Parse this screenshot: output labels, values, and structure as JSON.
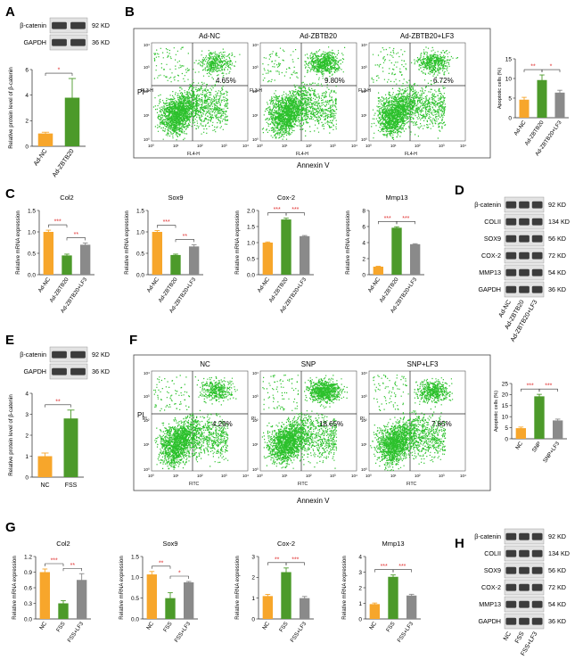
{
  "colors": {
    "orange": "#f7a62b",
    "green": "#4c9a2a",
    "gray": "#8a8a8a",
    "dot": "#2cc12c",
    "sig": "#e03030",
    "band": "#1f1f1f",
    "bg": "#ffffff"
  },
  "panels": {
    "A": "A",
    "B": "B",
    "C": "C",
    "D": "D",
    "E": "E",
    "F": "F",
    "G": "G",
    "H": "H"
  },
  "western_blots": {
    "A": {
      "rows": [
        {
          "label": "β-catenin",
          "size": "92 KD"
        },
        {
          "label": "GAPDH",
          "size": "36 KD"
        }
      ]
    },
    "E": {
      "rows": [
        {
          "label": "β-catenin",
          "size": "92 KD"
        },
        {
          "label": "GAPDH",
          "size": "36 KD"
        }
      ]
    },
    "D": {
      "rows": [
        {
          "label": "β-catenin",
          "size": "92 KD"
        },
        {
          "label": "COLII",
          "size": "134 KD"
        },
        {
          "label": "SOX9",
          "size": "56 KD"
        },
        {
          "label": "COX-2",
          "size": "72 KD"
        },
        {
          "label": "MMP13",
          "size": "54 KD"
        },
        {
          "label": "GAPDH",
          "size": "36 KD"
        }
      ],
      "lanes": [
        "Ad-NC",
        "Ad-ZBTB20",
        "Ad-ZBTB20+LF3"
      ]
    },
    "H": {
      "rows": [
        {
          "label": "β-catenin",
          "size": "92 KD"
        },
        {
          "label": "COLII",
          "size": "134 KD"
        },
        {
          "label": "SOX9",
          "size": "56 KD"
        },
        {
          "label": "COX-2",
          "size": "72 KD"
        },
        {
          "label": "MMP13",
          "size": "54 KD"
        },
        {
          "label": "GAPDH",
          "size": "36 KD"
        }
      ],
      "lanes": [
        "NC",
        "FSS",
        "FSS+LF3"
      ]
    }
  },
  "flow": {
    "B": {
      "xlabel": "Annexin V",
      "ylabel": "PI",
      "axis_x": "FL4-H",
      "axis_y": "FL3-H",
      "plots": [
        {
          "title": "Ad-NC",
          "pct": "4.65%"
        },
        {
          "title": "Ad-ZBTB20",
          "pct": "9.80%"
        },
        {
          "title": "Ad-ZBTB20+LF3",
          "pct": "6.72%"
        }
      ]
    },
    "F": {
      "xlabel": "Annexin V",
      "ylabel": "PI",
      "axis_x": "FITC",
      "axis_y": "PI",
      "plots": [
        {
          "title": "NC",
          "pct": "4.29%"
        },
        {
          "title": "SNP",
          "pct": "18.65%"
        },
        {
          "title": "SNP+LF3",
          "pct": "7.85%"
        }
      ]
    },
    "ticks": [
      "10⁰",
      "10¹",
      "10²",
      "10³",
      "10⁴"
    ]
  },
  "chart_data": [
    {
      "id": "A",
      "type": "bar",
      "categories": [
        "Ad-NC",
        "Ad-ZBTB20"
      ],
      "values": [
        1.0,
        3.8
      ],
      "errors": [
        0.1,
        1.5
      ],
      "ylabel": "Relative protein level of β-catenin",
      "ylim": [
        0,
        6
      ],
      "yticks": [
        "0",
        "2",
        "4",
        "6"
      ],
      "sig": [
        "*"
      ]
    },
    {
      "id": "B",
      "type": "bar",
      "categories": [
        "Ad-NC",
        "Ad-ZBTB20",
        "Ad-ZBTB20+LF3"
      ],
      "values": [
        4.6,
        9.6,
        6.4
      ],
      "errors": [
        0.6,
        1.3,
        0.6
      ],
      "ylabel": "Apoptotic cells (%)",
      "ylim": [
        0,
        15
      ],
      "yticks": [
        "0",
        "5",
        "10",
        "15"
      ],
      "sig": [
        "**",
        "*"
      ]
    },
    {
      "id": "C1",
      "type": "bar",
      "title": "Col2",
      "categories": [
        "Ad-NC",
        "Ad-ZBTB20",
        "Ad-ZBTB20+LF3"
      ],
      "values": [
        1.0,
        0.45,
        0.7
      ],
      "errors": [
        0.04,
        0.03,
        0.04
      ],
      "ylabel": "Relative mRNA expression",
      "ylim": [
        0,
        1.5
      ],
      "yticks": [
        "0.0",
        "0.5",
        "1.0",
        "1.5"
      ],
      "sig": [
        "***",
        "**"
      ]
    },
    {
      "id": "C2",
      "type": "bar",
      "title": "Sox9",
      "categories": [
        "Ad-NC",
        "Ad-ZBTB20",
        "Ad-ZBTB20+LF3"
      ],
      "values": [
        1.0,
        0.46,
        0.66
      ],
      "errors": [
        0.03,
        0.02,
        0.04
      ],
      "ylabel": "Relative mRNA expression",
      "ylim": [
        0,
        1.5
      ],
      "yticks": [
        "0.0",
        "0.5",
        "1.0",
        "1.5"
      ],
      "sig": [
        "***",
        "**"
      ]
    },
    {
      "id": "C3",
      "type": "bar",
      "title": "Cox-2",
      "categories": [
        "Ad-NC",
        "Ad-ZBTB20",
        "Ad-ZBTB20+LF3"
      ],
      "values": [
        1.0,
        1.72,
        1.2
      ],
      "errors": [
        0.02,
        0.04,
        0.02
      ],
      "ylabel": "Relative mRNA expression",
      "ylim": [
        0,
        2.0
      ],
      "yticks": [
        "0.0",
        "0.5",
        "1.0",
        "1.5",
        "2.0"
      ],
      "sig": [
        "***",
        "***"
      ]
    },
    {
      "id": "C4",
      "type": "bar",
      "title": "Mmp13",
      "categories": [
        "Ad-NC",
        "Ad-ZBTB20",
        "Ad-ZBTB20+LF3"
      ],
      "values": [
        1.0,
        5.85,
        3.8
      ],
      "errors": [
        0.05,
        0.12,
        0.06
      ],
      "ylabel": "Relative mRNA expression",
      "ylim": [
        0,
        8
      ],
      "yticks": [
        "0",
        "2",
        "4",
        "6",
        "8"
      ],
      "sig": [
        "***",
        "***"
      ]
    },
    {
      "id": "E",
      "type": "bar",
      "categories": [
        "NC",
        "FSS"
      ],
      "values": [
        1.0,
        2.8
      ],
      "errors": [
        0.15,
        0.4
      ],
      "ylabel": "Relative protein level of β-catenin",
      "ylim": [
        0,
        4
      ],
      "yticks": [
        "0",
        "1",
        "2",
        "3",
        "4"
      ],
      "sig": [
        "**"
      ]
    },
    {
      "id": "F",
      "type": "bar",
      "categories": [
        "NC",
        "SNP",
        "SNP+LF3"
      ],
      "values": [
        4.8,
        19.2,
        8.3
      ],
      "errors": [
        0.5,
        0.9,
        0.6
      ],
      "ylabel": "Apoptotic cells (%)",
      "ylim": [
        0,
        25
      ],
      "yticks": [
        "0",
        "5",
        "10",
        "15",
        "20",
        "25"
      ],
      "sig": [
        "***",
        "***"
      ]
    },
    {
      "id": "G1",
      "type": "bar",
      "title": "Col2",
      "categories": [
        "NC",
        "FSS",
        "FSS+LF3"
      ],
      "values": [
        0.9,
        0.3,
        0.75
      ],
      "errors": [
        0.06,
        0.05,
        0.12
      ],
      "ylabel": "Relative mRNA expression",
      "ylim": [
        0,
        1.2
      ],
      "yticks": [
        "0.0",
        "0.3",
        "0.6",
        "0.9",
        "1.2"
      ],
      "sig": [
        "***",
        "**"
      ]
    },
    {
      "id": "G2",
      "type": "bar",
      "title": "Sox9",
      "categories": [
        "NC",
        "FSS",
        "FSS+LF3"
      ],
      "values": [
        1.07,
        0.5,
        0.88
      ],
      "errors": [
        0.07,
        0.13,
        0.02
      ],
      "ylabel": "Relative mRNA expression",
      "ylim": [
        0,
        1.5
      ],
      "yticks": [
        "0.0",
        "0.5",
        "1.0",
        "1.5"
      ],
      "sig": [
        "**",
        "*"
      ]
    },
    {
      "id": "G3",
      "type": "bar",
      "title": "Cox-2",
      "categories": [
        "NC",
        "FSS",
        "FSS+LF3"
      ],
      "values": [
        1.1,
        2.25,
        1.0
      ],
      "errors": [
        0.08,
        0.2,
        0.08
      ],
      "ylabel": "Relative mRNA expression",
      "ylim": [
        0,
        3
      ],
      "yticks": [
        "0",
        "1",
        "2",
        "3"
      ],
      "sig": [
        "**",
        "***"
      ]
    },
    {
      "id": "G4",
      "type": "bar",
      "title": "Mmp13",
      "categories": [
        "NC",
        "FSS",
        "FSS+LF3"
      ],
      "values": [
        0.95,
        2.7,
        1.5
      ],
      "errors": [
        0.07,
        0.12,
        0.08
      ],
      "ylabel": "Relative mRNA expression",
      "ylim": [
        0,
        4
      ],
      "yticks": [
        "0",
        "1",
        "2",
        "3",
        "4"
      ],
      "sig": [
        "***",
        "***"
      ]
    }
  ]
}
